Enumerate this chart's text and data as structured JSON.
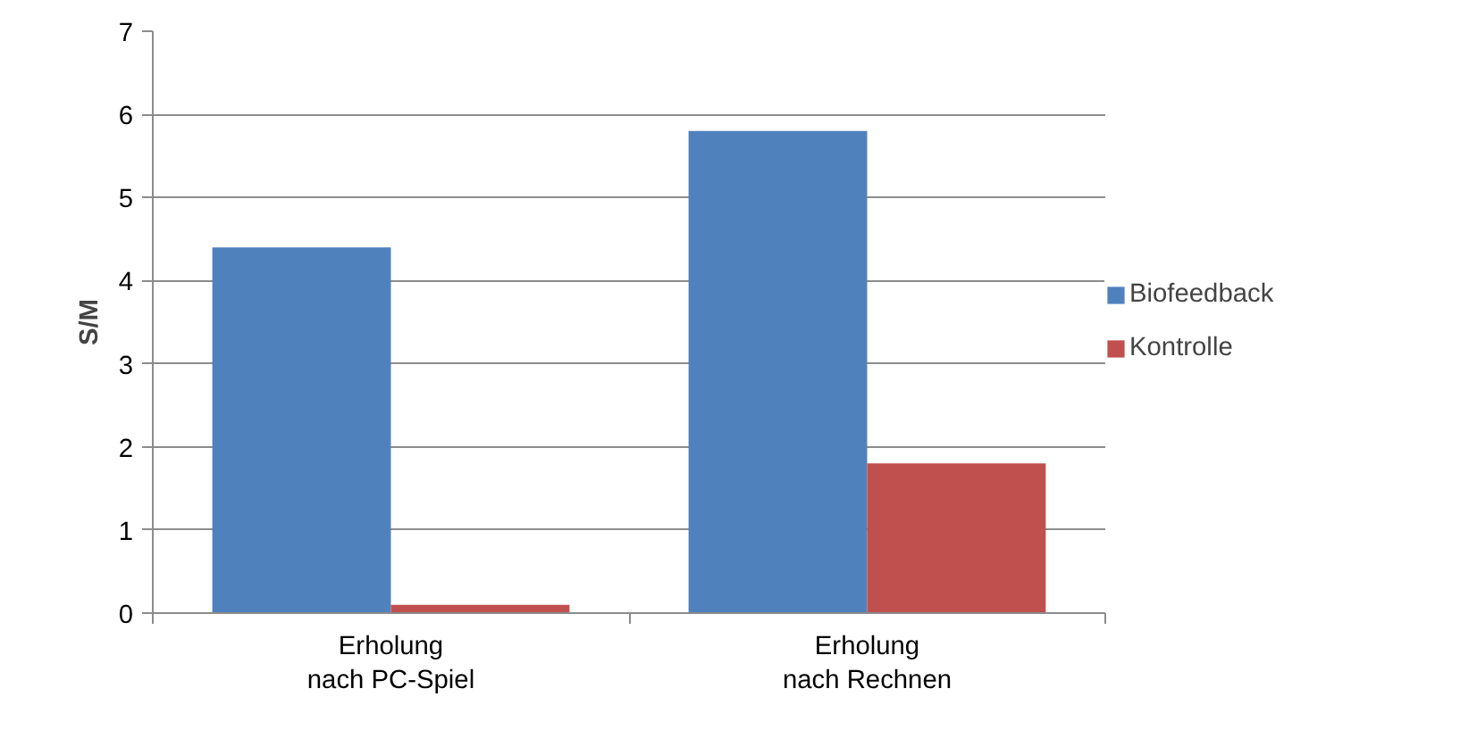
{
  "chart_data": {
    "type": "bar",
    "ylabel": "S/M",
    "categories": [
      "Erholung\nnach PC-Spiel",
      "Erholung\nnach Rechnen"
    ],
    "series": [
      {
        "name": "Biofeedback",
        "color": "#4f81bd",
        "values": [
          4.4,
          5.8
        ]
      },
      {
        "name": "Kontrolle",
        "color": "#c0504d",
        "values": [
          0.1,
          1.8
        ]
      }
    ],
    "ylim": [
      0,
      7
    ],
    "yticks": [
      0,
      1,
      2,
      3,
      4,
      5,
      6,
      7
    ],
    "grid": "y",
    "legend": "right"
  }
}
